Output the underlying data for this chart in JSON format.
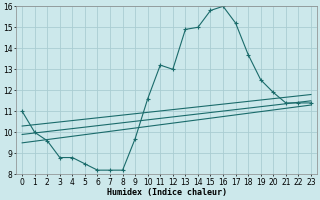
{
  "title": "",
  "xlabel": "Humidex (Indice chaleur)",
  "ylabel": "",
  "background_color": "#cce8eb",
  "grid_color": "#aacdd2",
  "line_color": "#1a6b6b",
  "xlim": [
    -0.5,
    23.5
  ],
  "ylim": [
    8,
    16
  ],
  "xtick_labels": [
    "0",
    "1",
    "2",
    "3",
    "4",
    "5",
    "6",
    "7",
    "8",
    "9",
    "10",
    "11",
    "12",
    "13",
    "14",
    "15",
    "16",
    "17",
    "18",
    "19",
    "20",
    "21",
    "22",
    "23"
  ],
  "xticks": [
    0,
    1,
    2,
    3,
    4,
    5,
    6,
    7,
    8,
    9,
    10,
    11,
    12,
    13,
    14,
    15,
    16,
    17,
    18,
    19,
    20,
    21,
    22,
    23
  ],
  "yticks": [
    8,
    9,
    10,
    11,
    12,
    13,
    14,
    15,
    16
  ],
  "curve1_x": [
    0,
    1,
    2,
    3,
    4,
    5,
    6,
    7,
    8,
    9,
    10,
    11,
    12,
    13,
    14,
    15,
    16,
    17,
    18,
    19,
    20,
    21,
    22,
    23
  ],
  "curve1_y": [
    11.0,
    10.0,
    9.6,
    8.8,
    8.8,
    8.5,
    8.2,
    8.2,
    8.2,
    9.7,
    11.6,
    13.2,
    13.0,
    14.9,
    15.0,
    15.8,
    16.0,
    15.2,
    13.7,
    12.5,
    11.9,
    11.4,
    11.4,
    11.4
  ],
  "line1_x": [
    0,
    23
  ],
  "line1_y": [
    9.5,
    11.3
  ],
  "line2_x": [
    0,
    23
  ],
  "line2_y": [
    9.9,
    11.5
  ],
  "line3_x": [
    0,
    23
  ],
  "line3_y": [
    10.3,
    11.8
  ]
}
